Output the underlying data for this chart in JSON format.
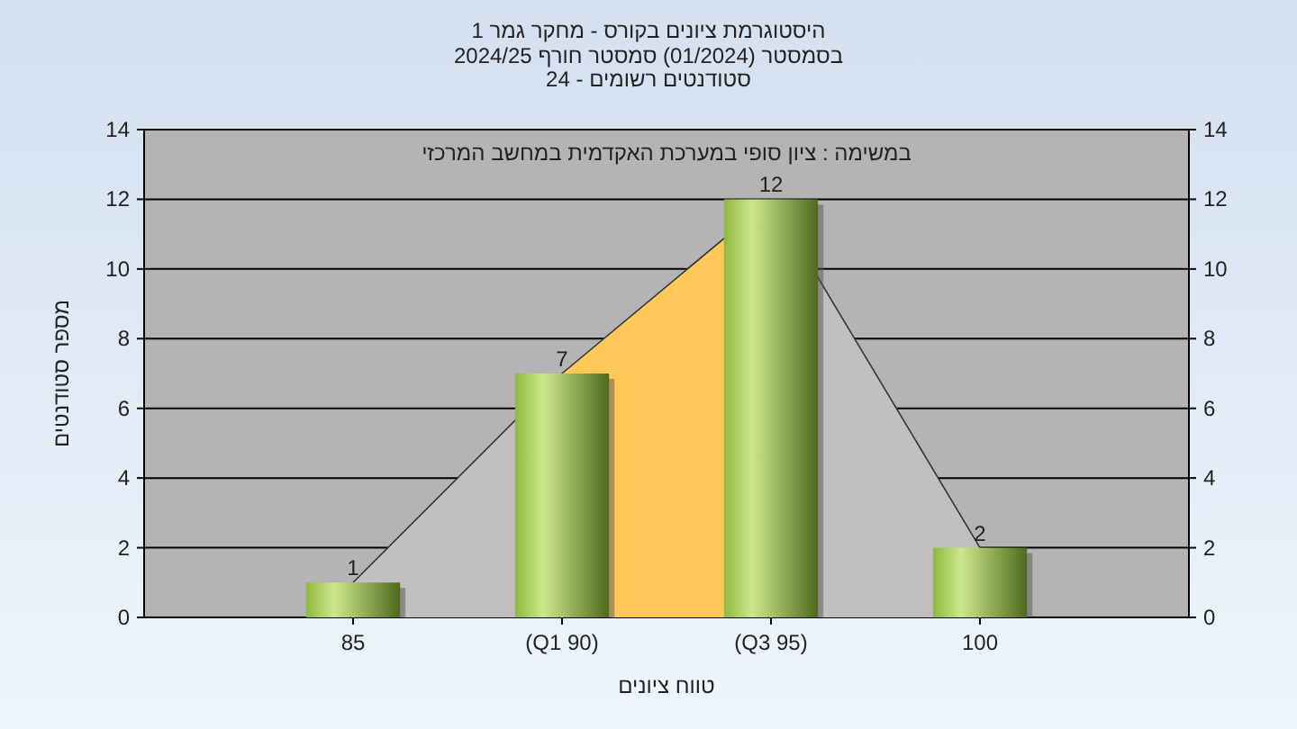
{
  "chart_data": {
    "type": "bar",
    "title": "היסטוגרמת ציונים בקורס - מחקר גמר 1",
    "subtitle": "בסמסטר (01/2024) סמסטר חורף 2024/25\nסטודנטים רשומים - 24",
    "xlabel": "טווח ציונים",
    "ylabel": "מספר סטודנטים",
    "annotations": [
      "במשימה : ציון סופי במערכת האקדמית במחשב המרכזי"
    ],
    "categories": [
      "85",
      "(Q1 90)",
      "(Q3 95)",
      "100"
    ],
    "series": [
      {
        "type": "area",
        "color": "#c0c0c0",
        "values": [
          1,
          7,
          12,
          2
        ]
      },
      {
        "color": "#8db840",
        "values": [
          1,
          7,
          12,
          2
        ],
        "value_labels": [
          "1",
          "7",
          "12",
          "2"
        ]
      }
    ],
    "bands": [
      {
        "axis": "x",
        "from": "(Q1 90)",
        "to": "(Q3 95)",
        "color": "#ffc857"
      }
    ],
    "ylim": [
      0,
      14
    ],
    "yticks": [
      0,
      2,
      4,
      6,
      8,
      10,
      12,
      14
    ],
    "y2lim": [
      0,
      14
    ],
    "y2ticks": [
      0,
      2,
      4,
      6,
      8,
      10,
      12,
      14
    ],
    "grid": "y"
  }
}
